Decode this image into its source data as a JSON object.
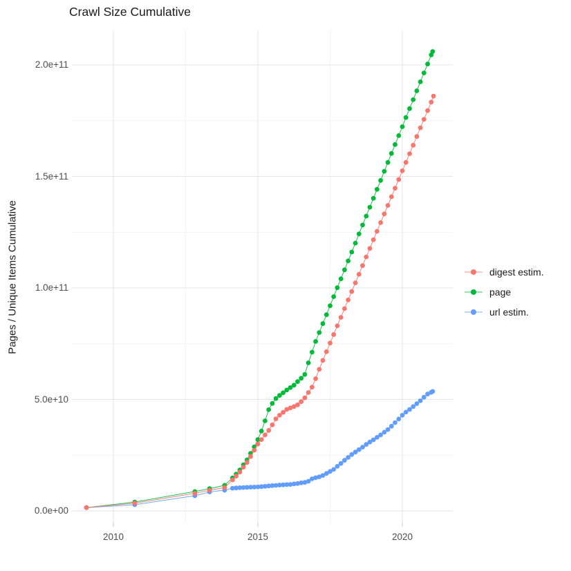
{
  "title": "Crawl Size Cumulative",
  "axes": {
    "y_title": "Pages / Unique Items Cumulative",
    "x_ticks": [
      {
        "value": 2010,
        "label": "2010"
      },
      {
        "value": 2015,
        "label": "2015"
      },
      {
        "value": 2020,
        "label": "2020"
      }
    ],
    "x_minor": [
      2012.5,
      2017.5
    ],
    "y_ticks": [
      {
        "value": 0,
        "label": "0.0e+00"
      },
      {
        "value": 50,
        "label": "5.0e+10"
      },
      {
        "value": 100,
        "label": "1.0e+11"
      },
      {
        "value": 150,
        "label": "1.5e+11"
      },
      {
        "value": 200,
        "label": "2.0e+11"
      }
    ],
    "y_minor": [
      25,
      75,
      125,
      175
    ]
  },
  "legend": {
    "items": [
      {
        "label": "digest estim.",
        "color": "#F8766D",
        "series": "digest estim."
      },
      {
        "label": "page",
        "color": "#00BA38",
        "series": "page"
      },
      {
        "label": "url estim.",
        "color": "#619CFF",
        "series": "url estim."
      }
    ]
  },
  "colors": {
    "grid_major": "#E4E4E4",
    "grid_minor": "#F3F3F3",
    "tick_mark": "#CFCFCF"
  },
  "chart_data": {
    "type": "scatter",
    "title": "Crawl Size Cumulative",
    "xlabel": "",
    "ylabel": "Pages / Unique Items Cumulative",
    "x_unit": "year",
    "y_unit": "pages (1e9 = billions)",
    "xlim": [
      2008.55,
      2021.75
    ],
    "ylim_e9": [
      -5,
      215
    ],
    "grid": true,
    "legend_position": "right",
    "series": [
      {
        "name": "digest estim.",
        "color": "#F8766D",
        "points": [
          [
            2009.07,
            1.5
          ],
          [
            2010.74,
            3.5
          ],
          [
            2012.82,
            7.9
          ],
          [
            2013.33,
            9.3
          ],
          [
            2013.85,
            10.5
          ],
          [
            2014.125,
            13.9
          ],
          [
            2014.25,
            15.6
          ],
          [
            2014.375,
            17.4
          ],
          [
            2014.5,
            19.6
          ],
          [
            2014.625,
            21.7
          ],
          [
            2014.75,
            24.4
          ],
          [
            2014.875,
            27.2
          ],
          [
            2015.0,
            30.0
          ],
          [
            2015.125,
            32.0
          ],
          [
            2015.25,
            34.1
          ],
          [
            2015.375,
            36.1
          ],
          [
            2015.5,
            38.6
          ],
          [
            2015.625,
            41.3
          ],
          [
            2015.75,
            42.9
          ],
          [
            2015.875,
            44.2
          ],
          [
            2016.0,
            45.5
          ],
          [
            2016.125,
            46.2
          ],
          [
            2016.25,
            46.8
          ],
          [
            2016.375,
            47.6
          ],
          [
            2016.5,
            49.0
          ],
          [
            2016.625,
            50.7
          ],
          [
            2016.75,
            53.1
          ],
          [
            2016.875,
            55.5
          ],
          [
            2017.0,
            59.3
          ],
          [
            2017.125,
            63.5
          ],
          [
            2017.25,
            67.5
          ],
          [
            2017.375,
            71.4
          ],
          [
            2017.5,
            75.3
          ],
          [
            2017.625,
            79.1
          ],
          [
            2017.75,
            83.0
          ],
          [
            2017.875,
            86.8
          ],
          [
            2018.0,
            90.7
          ],
          [
            2018.125,
            94.6
          ],
          [
            2018.25,
            98.4
          ],
          [
            2018.375,
            102.3
          ],
          [
            2018.5,
            106.1
          ],
          [
            2018.625,
            110.0
          ],
          [
            2018.75,
            113.9
          ],
          [
            2018.875,
            117.7
          ],
          [
            2019.0,
            121.6
          ],
          [
            2019.125,
            125.4
          ],
          [
            2019.25,
            129.3
          ],
          [
            2019.375,
            133.2
          ],
          [
            2019.5,
            137.0
          ],
          [
            2019.625,
            140.9
          ],
          [
            2019.75,
            144.7
          ],
          [
            2019.875,
            148.6
          ],
          [
            2020.0,
            152.5
          ],
          [
            2020.125,
            156.3
          ],
          [
            2020.25,
            160.2
          ],
          [
            2020.375,
            164.0
          ],
          [
            2020.5,
            167.9
          ],
          [
            2020.625,
            171.8
          ],
          [
            2020.75,
            175.6
          ],
          [
            2020.875,
            179.5
          ],
          [
            2021.0,
            183.3
          ],
          [
            2021.08,
            186.0
          ]
        ]
      },
      {
        "name": "page",
        "color": "#00BA38",
        "points": [
          [
            2009.07,
            1.5
          ],
          [
            2010.74,
            4.0
          ],
          [
            2012.82,
            8.7
          ],
          [
            2013.33,
            10.0
          ],
          [
            2013.85,
            11.5
          ],
          [
            2014.125,
            14.8
          ],
          [
            2014.25,
            16.5
          ],
          [
            2014.375,
            18.4
          ],
          [
            2014.5,
            20.7
          ],
          [
            2014.625,
            22.9
          ],
          [
            2014.75,
            25.8
          ],
          [
            2014.875,
            28.7
          ],
          [
            2015.0,
            32.0
          ],
          [
            2015.125,
            35.8
          ],
          [
            2015.25,
            40.4
          ],
          [
            2015.375,
            45.4
          ],
          [
            2015.5,
            48.2
          ],
          [
            2015.625,
            50.4
          ],
          [
            2015.75,
            51.8
          ],
          [
            2015.875,
            53.0
          ],
          [
            2016.0,
            54.2
          ],
          [
            2016.125,
            55.3
          ],
          [
            2016.25,
            56.4
          ],
          [
            2016.375,
            58.0
          ],
          [
            2016.5,
            59.5
          ],
          [
            2016.625,
            61.2
          ],
          [
            2016.75,
            66.4
          ],
          [
            2016.875,
            71.2
          ],
          [
            2017.0,
            76.0
          ],
          [
            2017.125,
            80.0
          ],
          [
            2017.25,
            84.0
          ],
          [
            2017.375,
            88.0
          ],
          [
            2017.5,
            92.0
          ],
          [
            2017.625,
            96.1
          ],
          [
            2017.75,
            100.1
          ],
          [
            2017.875,
            104.1
          ],
          [
            2018.0,
            108.1
          ],
          [
            2018.125,
            112.1
          ],
          [
            2018.25,
            116.1
          ],
          [
            2018.375,
            120.1
          ],
          [
            2018.5,
            124.2
          ],
          [
            2018.625,
            128.2
          ],
          [
            2018.75,
            132.2
          ],
          [
            2018.875,
            136.2
          ],
          [
            2019.0,
            140.2
          ],
          [
            2019.125,
            144.2
          ],
          [
            2019.25,
            148.2
          ],
          [
            2019.375,
            152.3
          ],
          [
            2019.5,
            156.3
          ],
          [
            2019.625,
            160.3
          ],
          [
            2019.75,
            164.3
          ],
          [
            2019.875,
            168.3
          ],
          [
            2020.0,
            172.3
          ],
          [
            2020.125,
            176.4
          ],
          [
            2020.25,
            180.4
          ],
          [
            2020.375,
            184.4
          ],
          [
            2020.5,
            188.4
          ],
          [
            2020.625,
            192.4
          ],
          [
            2020.75,
            196.4
          ],
          [
            2020.875,
            200.4
          ],
          [
            2021.0,
            204.5
          ],
          [
            2021.05,
            206.0
          ]
        ]
      },
      {
        "name": "url estim.",
        "color": "#619CFF",
        "points": [
          [
            2009.07,
            1.5
          ],
          [
            2010.74,
            2.8
          ],
          [
            2012.82,
            6.8
          ],
          [
            2013.33,
            8.5
          ],
          [
            2013.85,
            9.3
          ],
          [
            2014.125,
            10.2
          ],
          [
            2014.25,
            10.3
          ],
          [
            2014.375,
            10.4
          ],
          [
            2014.5,
            10.5
          ],
          [
            2014.625,
            10.6
          ],
          [
            2014.75,
            10.65
          ],
          [
            2014.875,
            10.7
          ],
          [
            2015.0,
            10.8
          ],
          [
            2015.125,
            10.9
          ],
          [
            2015.25,
            11.05
          ],
          [
            2015.375,
            11.2
          ],
          [
            2015.5,
            11.35
          ],
          [
            2015.625,
            11.45
          ],
          [
            2015.75,
            11.6
          ],
          [
            2015.875,
            11.7
          ],
          [
            2016.0,
            11.8
          ],
          [
            2016.125,
            11.9
          ],
          [
            2016.25,
            12.1
          ],
          [
            2016.375,
            12.3
          ],
          [
            2016.5,
            12.6
          ],
          [
            2016.625,
            12.8
          ],
          [
            2016.75,
            13.3
          ],
          [
            2016.875,
            14.4
          ],
          [
            2017.0,
            14.9
          ],
          [
            2017.125,
            15.3
          ],
          [
            2017.25,
            15.9
          ],
          [
            2017.375,
            16.8
          ],
          [
            2017.5,
            17.7
          ],
          [
            2017.625,
            18.6
          ],
          [
            2017.75,
            20.0
          ],
          [
            2017.875,
            21.3
          ],
          [
            2018.0,
            22.7
          ],
          [
            2018.125,
            24.0
          ],
          [
            2018.25,
            25.3
          ],
          [
            2018.375,
            26.4
          ],
          [
            2018.5,
            27.5
          ],
          [
            2018.625,
            28.6
          ],
          [
            2018.75,
            29.8
          ],
          [
            2018.875,
            30.9
          ],
          [
            2019.0,
            31.9
          ],
          [
            2019.125,
            33.0
          ],
          [
            2019.25,
            34.1
          ],
          [
            2019.375,
            35.3
          ],
          [
            2019.5,
            36.5
          ],
          [
            2019.625,
            38.0
          ],
          [
            2019.75,
            39.6
          ],
          [
            2019.875,
            41.2
          ],
          [
            2020.0,
            42.9
          ],
          [
            2020.125,
            44.3
          ],
          [
            2020.25,
            45.5
          ],
          [
            2020.375,
            46.8
          ],
          [
            2020.5,
            48.1
          ],
          [
            2020.625,
            49.4
          ],
          [
            2020.75,
            51.0
          ],
          [
            2020.875,
            52.4
          ],
          [
            2021.0,
            53.2
          ],
          [
            2021.05,
            53.6
          ]
        ]
      }
    ]
  }
}
